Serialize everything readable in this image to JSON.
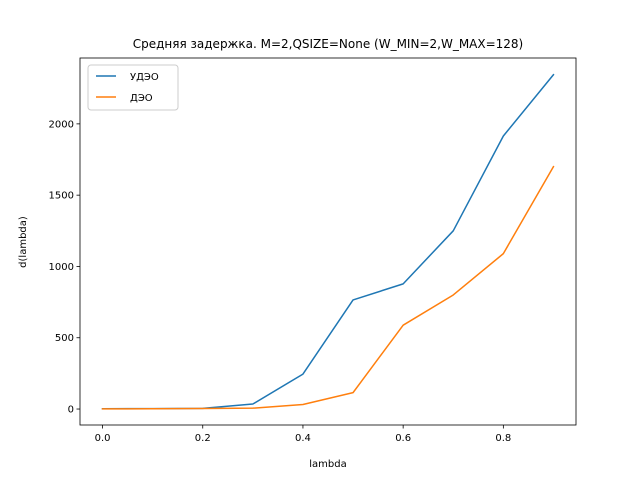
{
  "chart_data": {
    "type": "line",
    "title": "Средняя задержка. M=2,QSIZE=None (W_MIN=2,W_MAX=128)",
    "xlabel": "lambda",
    "ylabel": "d(lambda)",
    "xlim": [
      -0.045,
      0.945
    ],
    "ylim": [
      -112,
      2462
    ],
    "x_ticks": [
      0.0,
      0.2,
      0.4,
      0.6,
      0.8
    ],
    "x_tick_labels": [
      "0.0",
      "0.2",
      "0.4",
      "0.6",
      "0.8"
    ],
    "y_ticks": [
      0,
      500,
      1000,
      1500,
      2000
    ],
    "y_tick_labels": [
      "0",
      "500",
      "1000",
      "1500",
      "2000"
    ],
    "grid": false,
    "legend_position": "top-left",
    "x": [
      0.0,
      0.1,
      0.2,
      0.3,
      0.4,
      0.5,
      0.6,
      0.7,
      0.8,
      0.9
    ],
    "series": [
      {
        "name": "УДЭО",
        "color": "#1f77b4",
        "values": [
          2,
          3,
          5,
          35,
          245,
          765,
          878,
          1250,
          1915,
          2345
        ]
      },
      {
        "name": "ДЭО",
        "color": "#ff7f0e",
        "values": [
          1,
          2,
          4,
          6,
          32,
          115,
          588,
          800,
          1090,
          1700
        ]
      }
    ]
  }
}
